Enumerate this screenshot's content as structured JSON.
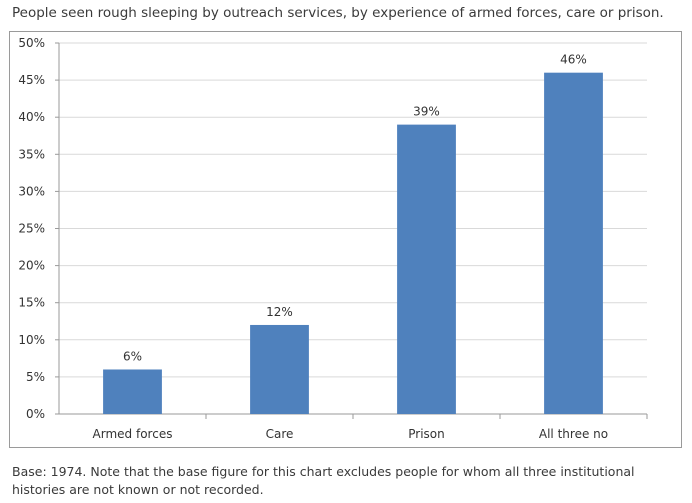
{
  "title": "People seen rough sleeping by outreach services, by experience of armed forces, care or prison.",
  "footnote": "Base: 1974. Note that the base figure for this chart excludes people for whom all three institutional histories are not known or not recorded.",
  "chart_data": {
    "type": "bar",
    "categories": [
      "Armed forces",
      "Care",
      "Prison",
      "All three no"
    ],
    "values": [
      6,
      12,
      39,
      46
    ],
    "data_labels": [
      "6%",
      "12%",
      "39%",
      "46%"
    ],
    "ylim": [
      0,
      50
    ],
    "yticks": [
      "0%",
      "5%",
      "10%",
      "15%",
      "20%",
      "25%",
      "30%",
      "35%",
      "40%",
      "45%",
      "50%"
    ],
    "grid": true,
    "bar_color": "#4f81bd",
    "grid_color": "#d9d9d9",
    "xlabel": "",
    "ylabel": ""
  }
}
